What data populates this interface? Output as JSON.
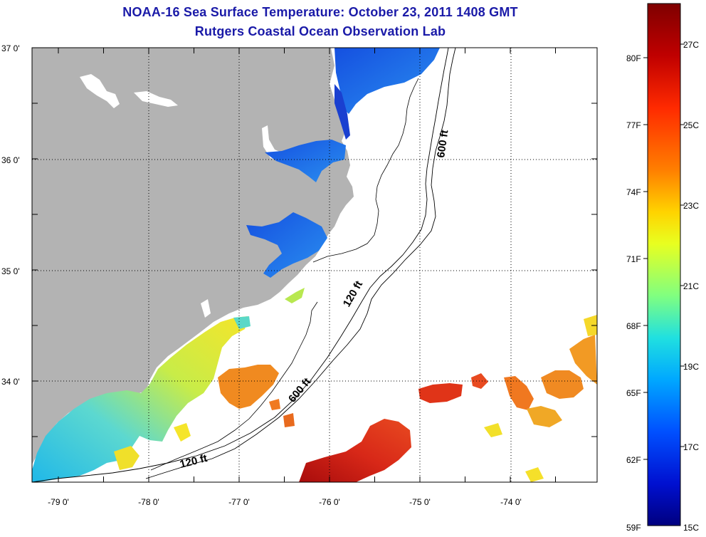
{
  "title": {
    "line1": "NOAA-16 Sea Surface Temperature:  October 23, 2011 1408 GMT",
    "line2": "Rutgers Coastal Ocean Observation Lab"
  },
  "map": {
    "lat_labels": [
      "37 0'",
      "36 0'",
      "35 0'",
      "34 0'"
    ],
    "lon_labels": [
      "-79 0'",
      "-78 0'",
      "-77 0'",
      "-76 0'",
      "-75 0'",
      "-74 0'"
    ],
    "contour_labels": {
      "shelf_120_offshore": "120 ft",
      "shelf_120_south": "120 ft",
      "slope_600_south": "600 ft",
      "slope_600_north": "600 ft"
    },
    "colors": {
      "land": "#b3b3b3",
      "ocean_bg": "#ffffff",
      "cold": "#1f5fe0",
      "cool": "#2fb8e8",
      "mid": "#a8e060",
      "warm": "#f5e02a",
      "orange": "#f07a20",
      "hot": "#d82a1a",
      "hottest": "#b01010"
    }
  },
  "colorbar": {
    "fahrenheit": [
      "80F",
      "77F",
      "74F",
      "71F",
      "68F",
      "65F",
      "62F",
      "59F"
    ],
    "celsius": [
      "27C",
      "25C",
      "23C",
      "21C",
      "19C",
      "17C",
      "15C"
    ],
    "gradient_colors": [
      "#7f0000",
      "#c00000",
      "#ff2a00",
      "#ff7f00",
      "#ffd400",
      "#e8ff20",
      "#80ff80",
      "#20e0e0",
      "#00a8ff",
      "#0050ff",
      "#0010d0",
      "#00007f"
    ]
  }
}
